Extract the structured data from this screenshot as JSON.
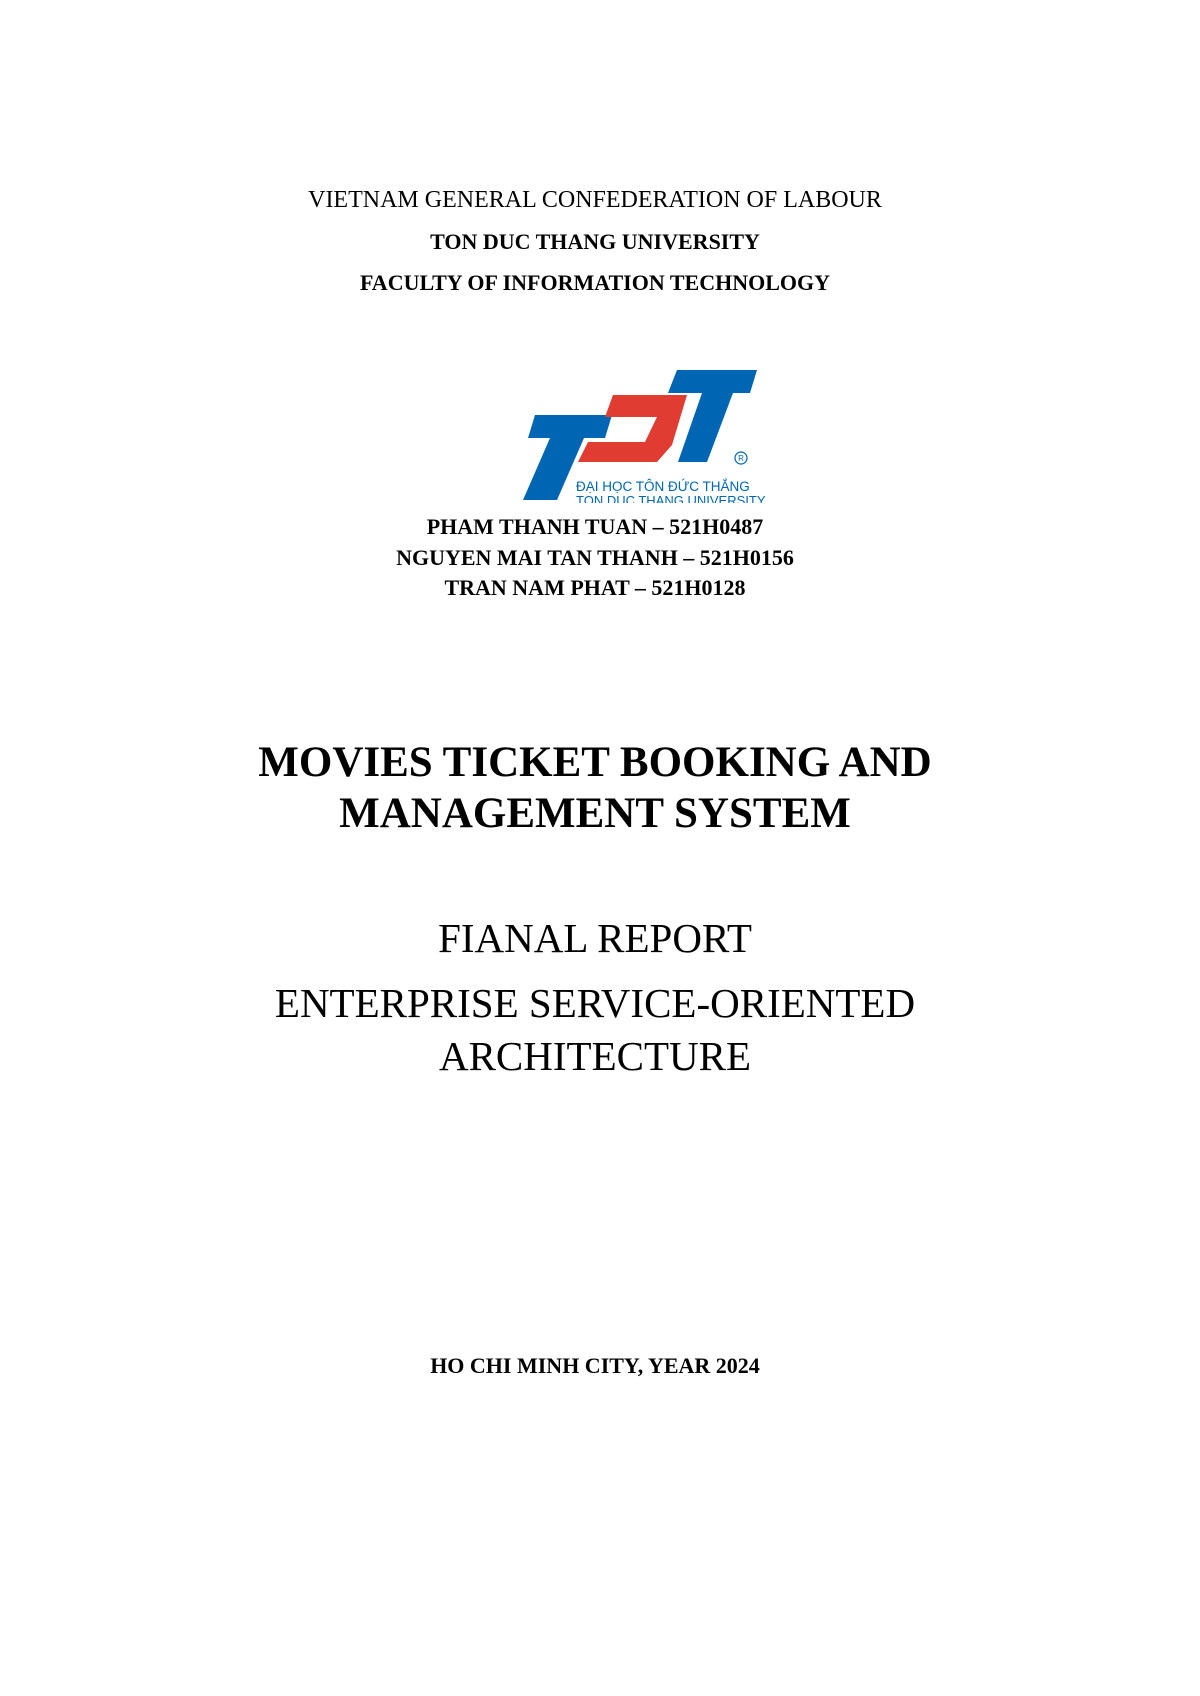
{
  "header": {
    "confederation": "VIETNAM GENERAL CONFEDERATION OF LABOUR",
    "university": "TON DUC THANG UNIVERSITY",
    "faculty": "FACULTY OF INFORMATION TECHNOLOGY"
  },
  "logo": {
    "text_vi": "ĐẠI HỌC TÔN ĐỨC THẮNG",
    "text_en": "TON DUC THANG UNIVERSITY",
    "colors": {
      "blue": "#0066b3",
      "red": "#e03c31"
    }
  },
  "authors": [
    "PHAM THANH TUAN – 521H0487",
    "NGUYEN MAI TAN THANH – 521H0156",
    "TRAN NAM PHAT – 521H0128"
  ],
  "title": {
    "line1": "MOVIES TICKET BOOKING AND",
    "line2": "MANAGEMENT SYSTEM"
  },
  "report": {
    "type": "FIANAL REPORT",
    "course_line1": "ENTERPRISE SERVICE-ORIENTED",
    "course_line2": "ARCHITECTURE"
  },
  "footer": {
    "place_year": "HO CHI MINH CITY, YEAR 2024"
  }
}
